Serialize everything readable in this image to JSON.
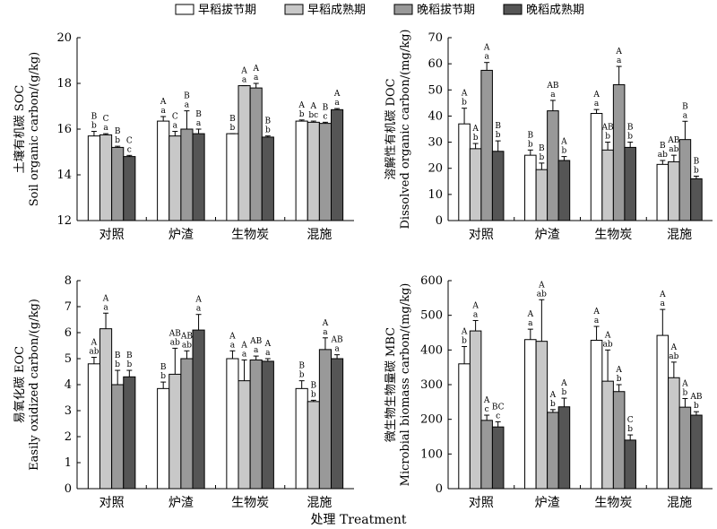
{
  "legend": [
    {
      "label": "早稻拔节期",
      "color": "#ffffff"
    },
    {
      "label": "早稻成熟期",
      "color": "#c8c8c8"
    },
    {
      "label": "晚稻拔节期",
      "color": "#999999"
    },
    {
      "label": "晚稻成熟期",
      "color": "#555555"
    }
  ],
  "xlabel": "处理 Treatment",
  "chart_data": [
    {
      "type": "bar",
      "ylabel_cn": "土壤有机碳 SOC",
      "ylabel_en": "Soil organic carbon/(g/kg)",
      "ylim": [
        12,
        20
      ],
      "yticks": [
        12,
        14,
        16,
        18,
        20
      ],
      "categories": [
        "对照",
        "炉渣",
        "生物炭",
        "混施"
      ],
      "series": [
        {
          "name": "早稻拔节期",
          "values": [
            15.7,
            16.35,
            15.8,
            16.35
          ],
          "errors": [
            0.2,
            0.2,
            0.0,
            0.05
          ],
          "letters": [
            [
              "B",
              "b"
            ],
            [
              "A",
              "a"
            ],
            [
              "B",
              "b"
            ],
            [
              "A",
              "b"
            ]
          ]
        },
        {
          "name": "早稻成熟期",
          "values": [
            15.75,
            15.7,
            17.9,
            16.3
          ],
          "errors": [
            0.05,
            0.2,
            0.0,
            0.05
          ],
          "letters": [
            [
              "C",
              "a"
            ],
            [
              "C",
              "a"
            ],
            [
              "A",
              "a"
            ],
            [
              "A",
              "bc"
            ]
          ]
        },
        {
          "name": "晚稻拔节期",
          "values": [
            15.2,
            16.0,
            17.8,
            16.25
          ],
          "errors": [
            0.05,
            0.8,
            0.2,
            0.05
          ],
          "letters": [
            [
              "B",
              "b"
            ],
            [
              "B",
              "a"
            ],
            [
              "A",
              "a"
            ],
            [
              "B",
              "c"
            ]
          ]
        },
        {
          "name": "晚稻成熟期",
          "values": [
            14.8,
            15.8,
            15.65,
            16.85
          ],
          "errors": [
            0.05,
            0.2,
            0.05,
            0.05
          ],
          "letters": [
            [
              "C",
              "c"
            ],
            [
              "B",
              "a"
            ],
            [
              "B",
              "b"
            ],
            [
              "A",
              "a"
            ]
          ]
        }
      ]
    },
    {
      "type": "bar",
      "ylabel_cn": "溶解性有机碳 DOC",
      "ylabel_en": "Dissolved organic carbon/(mg/kg)",
      "ylim": [
        0,
        70
      ],
      "yticks": [
        0,
        10,
        20,
        30,
        40,
        50,
        60,
        70
      ],
      "categories": [
        "对照",
        "炉渣",
        "生物炭",
        "混施"
      ],
      "series": [
        {
          "name": "早稻拔节期",
          "values": [
            37,
            25,
            41,
            21.5
          ],
          "errors": [
            6,
            2,
            1.5,
            1.5
          ],
          "letters": [
            [
              "A",
              "b"
            ],
            [
              "B",
              "b"
            ],
            [
              "A",
              "a"
            ],
            [
              "B",
              "ab"
            ]
          ]
        },
        {
          "name": "早稻成熟期",
          "values": [
            27.5,
            19.5,
            27,
            22.5
          ],
          "errors": [
            2,
            2.5,
            3,
            2.5
          ],
          "letters": [
            [
              "A",
              "b"
            ],
            [
              "B",
              "b"
            ],
            [
              "AB",
              "b"
            ],
            [
              "AB",
              "ab"
            ]
          ]
        },
        {
          "name": "晚稻拔节期",
          "values": [
            57.5,
            42,
            52,
            31
          ],
          "errors": [
            3,
            4,
            7,
            7
          ],
          "letters": [
            [
              "A",
              "a"
            ],
            [
              "AB",
              "a"
            ],
            [
              "A",
              "a"
            ],
            [
              "B",
              "a"
            ]
          ]
        },
        {
          "name": "晚稻成熟期",
          "values": [
            26.5,
            23,
            28,
            16
          ],
          "errors": [
            4,
            1.5,
            2,
            1
          ],
          "letters": [
            [
              "B",
              "b"
            ],
            [
              "A",
              "b"
            ],
            [
              "B",
              "b"
            ],
            [
              "B",
              "b"
            ]
          ]
        }
      ]
    },
    {
      "type": "bar",
      "ylabel_cn": "易氧化碳 EOC",
      "ylabel_en": "Easily oxidized carbon/(g/kg)",
      "ylim": [
        0,
        8
      ],
      "yticks": [
        0,
        1,
        2,
        3,
        4,
        5,
        6,
        7,
        8
      ],
      "categories": [
        "对照",
        "炉渣",
        "生物炭",
        "混施"
      ],
      "series": [
        {
          "name": "早稻拔节期",
          "values": [
            4.8,
            3.85,
            5.0,
            3.85
          ],
          "errors": [
            0.25,
            0.25,
            0.3,
            0.3
          ],
          "letters": [
            [
              "A",
              "ab"
            ],
            [
              "B",
              "b"
            ],
            [
              "A",
              "a"
            ],
            [
              "B",
              "b"
            ]
          ]
        },
        {
          "name": "早稻成熟期",
          "values": [
            6.15,
            4.4,
            4.15,
            3.35
          ],
          "errors": [
            0.6,
            1.0,
            0.8,
            0.05
          ],
          "letters": [
            [
              "A",
              "a"
            ],
            [
              "AB",
              "ab"
            ],
            [
              "A",
              "a"
            ],
            [
              "B",
              "b"
            ]
          ]
        },
        {
          "name": "晚稻拔节期",
          "values": [
            4.0,
            5.0,
            4.95,
            5.35
          ],
          "errors": [
            0.55,
            0.3,
            0.15,
            0.45
          ],
          "letters": [
            [
              "B",
              "b"
            ],
            [
              "AB",
              "ab"
            ],
            [
              "AB",
              "a"
            ],
            [
              "A",
              "a"
            ]
          ]
        },
        {
          "name": "晚稻成熟期",
          "values": [
            4.3,
            6.1,
            4.9,
            5.0
          ],
          "errors": [
            0.25,
            0.6,
            0.1,
            0.15
          ],
          "letters": [
            [
              "B",
              "b"
            ],
            [
              "A",
              "a"
            ],
            [
              "A",
              "a"
            ],
            [
              "AB",
              "a"
            ]
          ]
        }
      ]
    },
    {
      "type": "bar",
      "ylabel_cn": "微生物生物量碳 MBC",
      "ylabel_en": "Microbial biomass carbon/(mg/kg)",
      "ylim": [
        0,
        600
      ],
      "yticks": [
        0,
        100,
        200,
        300,
        400,
        500,
        600
      ],
      "categories": [
        "对照",
        "炉渣",
        "生物炭",
        "混施"
      ],
      "series": [
        {
          "name": "早稻拔节期",
          "values": [
            360,
            430,
            428,
            442
          ],
          "errors": [
            50,
            30,
            40,
            75
          ],
          "letters": [
            [
              "A",
              "b"
            ],
            [
              "A",
              "a"
            ],
            [
              "A",
              "a"
            ],
            [
              "A",
              "a"
            ]
          ]
        },
        {
          "name": "早稻成熟期",
          "values": [
            455,
            425,
            310,
            320
          ],
          "errors": [
            30,
            120,
            90,
            45
          ],
          "letters": [
            [
              "A",
              "a"
            ],
            [
              "A",
              "ab"
            ],
            [
              "A",
              "ab"
            ],
            [
              "A",
              "ab"
            ]
          ]
        },
        {
          "name": "晚稻拔节期",
          "values": [
            197,
            220,
            280,
            235
          ],
          "errors": [
            15,
            8,
            20,
            25
          ],
          "letters": [
            [
              "A",
              "c"
            ],
            [
              "A",
              "b"
            ],
            [
              "A",
              "b"
            ],
            [
              "A",
              "b"
            ]
          ]
        },
        {
          "name": "晚稻成熟期",
          "values": [
            178,
            236,
            140,
            212
          ],
          "errors": [
            15,
            25,
            15,
            10
          ],
          "letters": [
            [
              "BC",
              "c"
            ],
            [
              "A",
              "b"
            ],
            [
              "C",
              "b"
            ],
            [
              "AB",
              "b"
            ]
          ]
        }
      ]
    }
  ]
}
